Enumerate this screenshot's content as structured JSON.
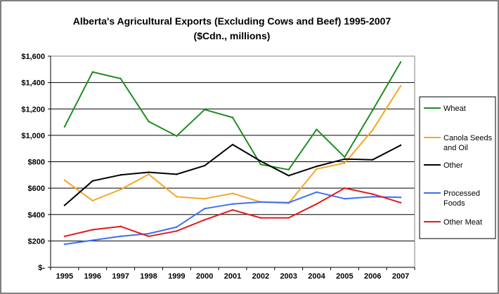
{
  "chart_data": {
    "type": "line",
    "title": "Alberta's Agricultural Exports (Excluding Cows and Beef) 1995-2007",
    "subtitle": "($Cdn., millions)",
    "xlabel": "",
    "ylabel": "",
    "x": [
      "1995",
      "1996",
      "1997",
      "1998",
      "1999",
      "2000",
      "2001",
      "2002",
      "2003",
      "2004",
      "2005",
      "2006",
      "2007"
    ],
    "ylim": [
      0,
      1600
    ],
    "yticks": [
      0,
      200,
      400,
      600,
      800,
      1000,
      1200,
      1400,
      1600
    ],
    "ytick_labels": [
      "$-",
      "$200",
      "$400",
      "$600",
      "$800",
      "$1,000",
      "$1,200",
      "$1,400",
      "$1,600"
    ],
    "grid": true,
    "legend_position": "right",
    "series": [
      {
        "name": "Wheat",
        "legend_lines": [
          "Wheat"
        ],
        "color": "#1f8c1f",
        "values": [
          1065,
          1480,
          1430,
          1105,
          995,
          1195,
          1135,
          780,
          740,
          1045,
          835,
          1190,
          1555
        ]
      },
      {
        "name": "Canola Seeds and Oil",
        "legend_lines": [
          "Canola Seeds",
          "and Oil"
        ],
        "color": "#f5a623",
        "values": [
          660,
          505,
          590,
          705,
          535,
          520,
          560,
          495,
          485,
          745,
          790,
          1040,
          1375
        ]
      },
      {
        "name": "Other",
        "legend_lines": [
          "Other"
        ],
        "color": "#000000",
        "values": [
          470,
          655,
          700,
          720,
          705,
          770,
          930,
          805,
          695,
          765,
          820,
          815,
          925
        ]
      },
      {
        "name": "Processed Foods",
        "legend_lines": [
          "Processed",
          "Foods"
        ],
        "color": "#3d6ff5",
        "values": [
          175,
          205,
          235,
          255,
          305,
          445,
          480,
          495,
          490,
          570,
          520,
          535,
          530
        ]
      },
      {
        "name": "Other Meat",
        "legend_lines": [
          "Other Meat"
        ],
        "color": "#e31a1a",
        "values": [
          235,
          285,
          310,
          235,
          275,
          360,
          435,
          375,
          375,
          480,
          600,
          555,
          490
        ]
      }
    ]
  }
}
